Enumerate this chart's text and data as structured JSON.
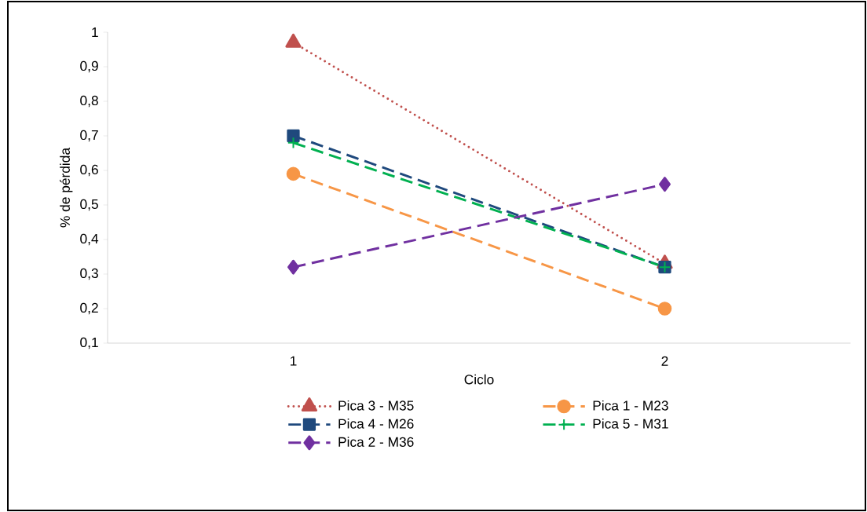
{
  "chart_data": {
    "type": "line",
    "xlabel": "Ciclo",
    "ylabel": "% de pérdida",
    "categories": [
      "1",
      "2"
    ],
    "series": [
      {
        "name": "Pica 3 - M35",
        "color": "#c0504d",
        "values": [
          0.97,
          0.33
        ],
        "marker": "triangle",
        "line_style": "dotted"
      },
      {
        "name": "Pica 1 - M23",
        "color": "#f79646",
        "values": [
          0.59,
          0.2
        ],
        "marker": "circle",
        "line_style": "dashed"
      },
      {
        "name": "Pica 4 - M26",
        "color": "#1f497d",
        "values": [
          0.7,
          0.32
        ],
        "marker": "square",
        "line_style": "dashed"
      },
      {
        "name": "Pica 5 - M31",
        "color": "#00b050",
        "values": [
          0.68,
          0.32
        ],
        "marker": "cross",
        "line_style": "dashed"
      },
      {
        "name": "Pica 2 - M36",
        "color": "#7030a0",
        "values": [
          0.32,
          0.56
        ],
        "marker": "diamond",
        "line_style": "dashed"
      }
    ],
    "ylim": [
      0.1,
      1
    ],
    "yticks": [
      {
        "value": 0.1,
        "label": "0,1"
      },
      {
        "value": 0.2,
        "label": "0,2"
      },
      {
        "value": 0.3,
        "label": "0,3"
      },
      {
        "value": 0.4,
        "label": "0,4"
      },
      {
        "value": 0.5,
        "label": "0,5"
      },
      {
        "value": 0.6,
        "label": "0,6"
      },
      {
        "value": 0.7,
        "label": "0,7"
      },
      {
        "value": 0.8,
        "label": "0,8"
      },
      {
        "value": 0.9,
        "label": "0,9"
      },
      {
        "value": 1,
        "label": "1"
      }
    ],
    "grid": false,
    "legend": "bottom"
  }
}
